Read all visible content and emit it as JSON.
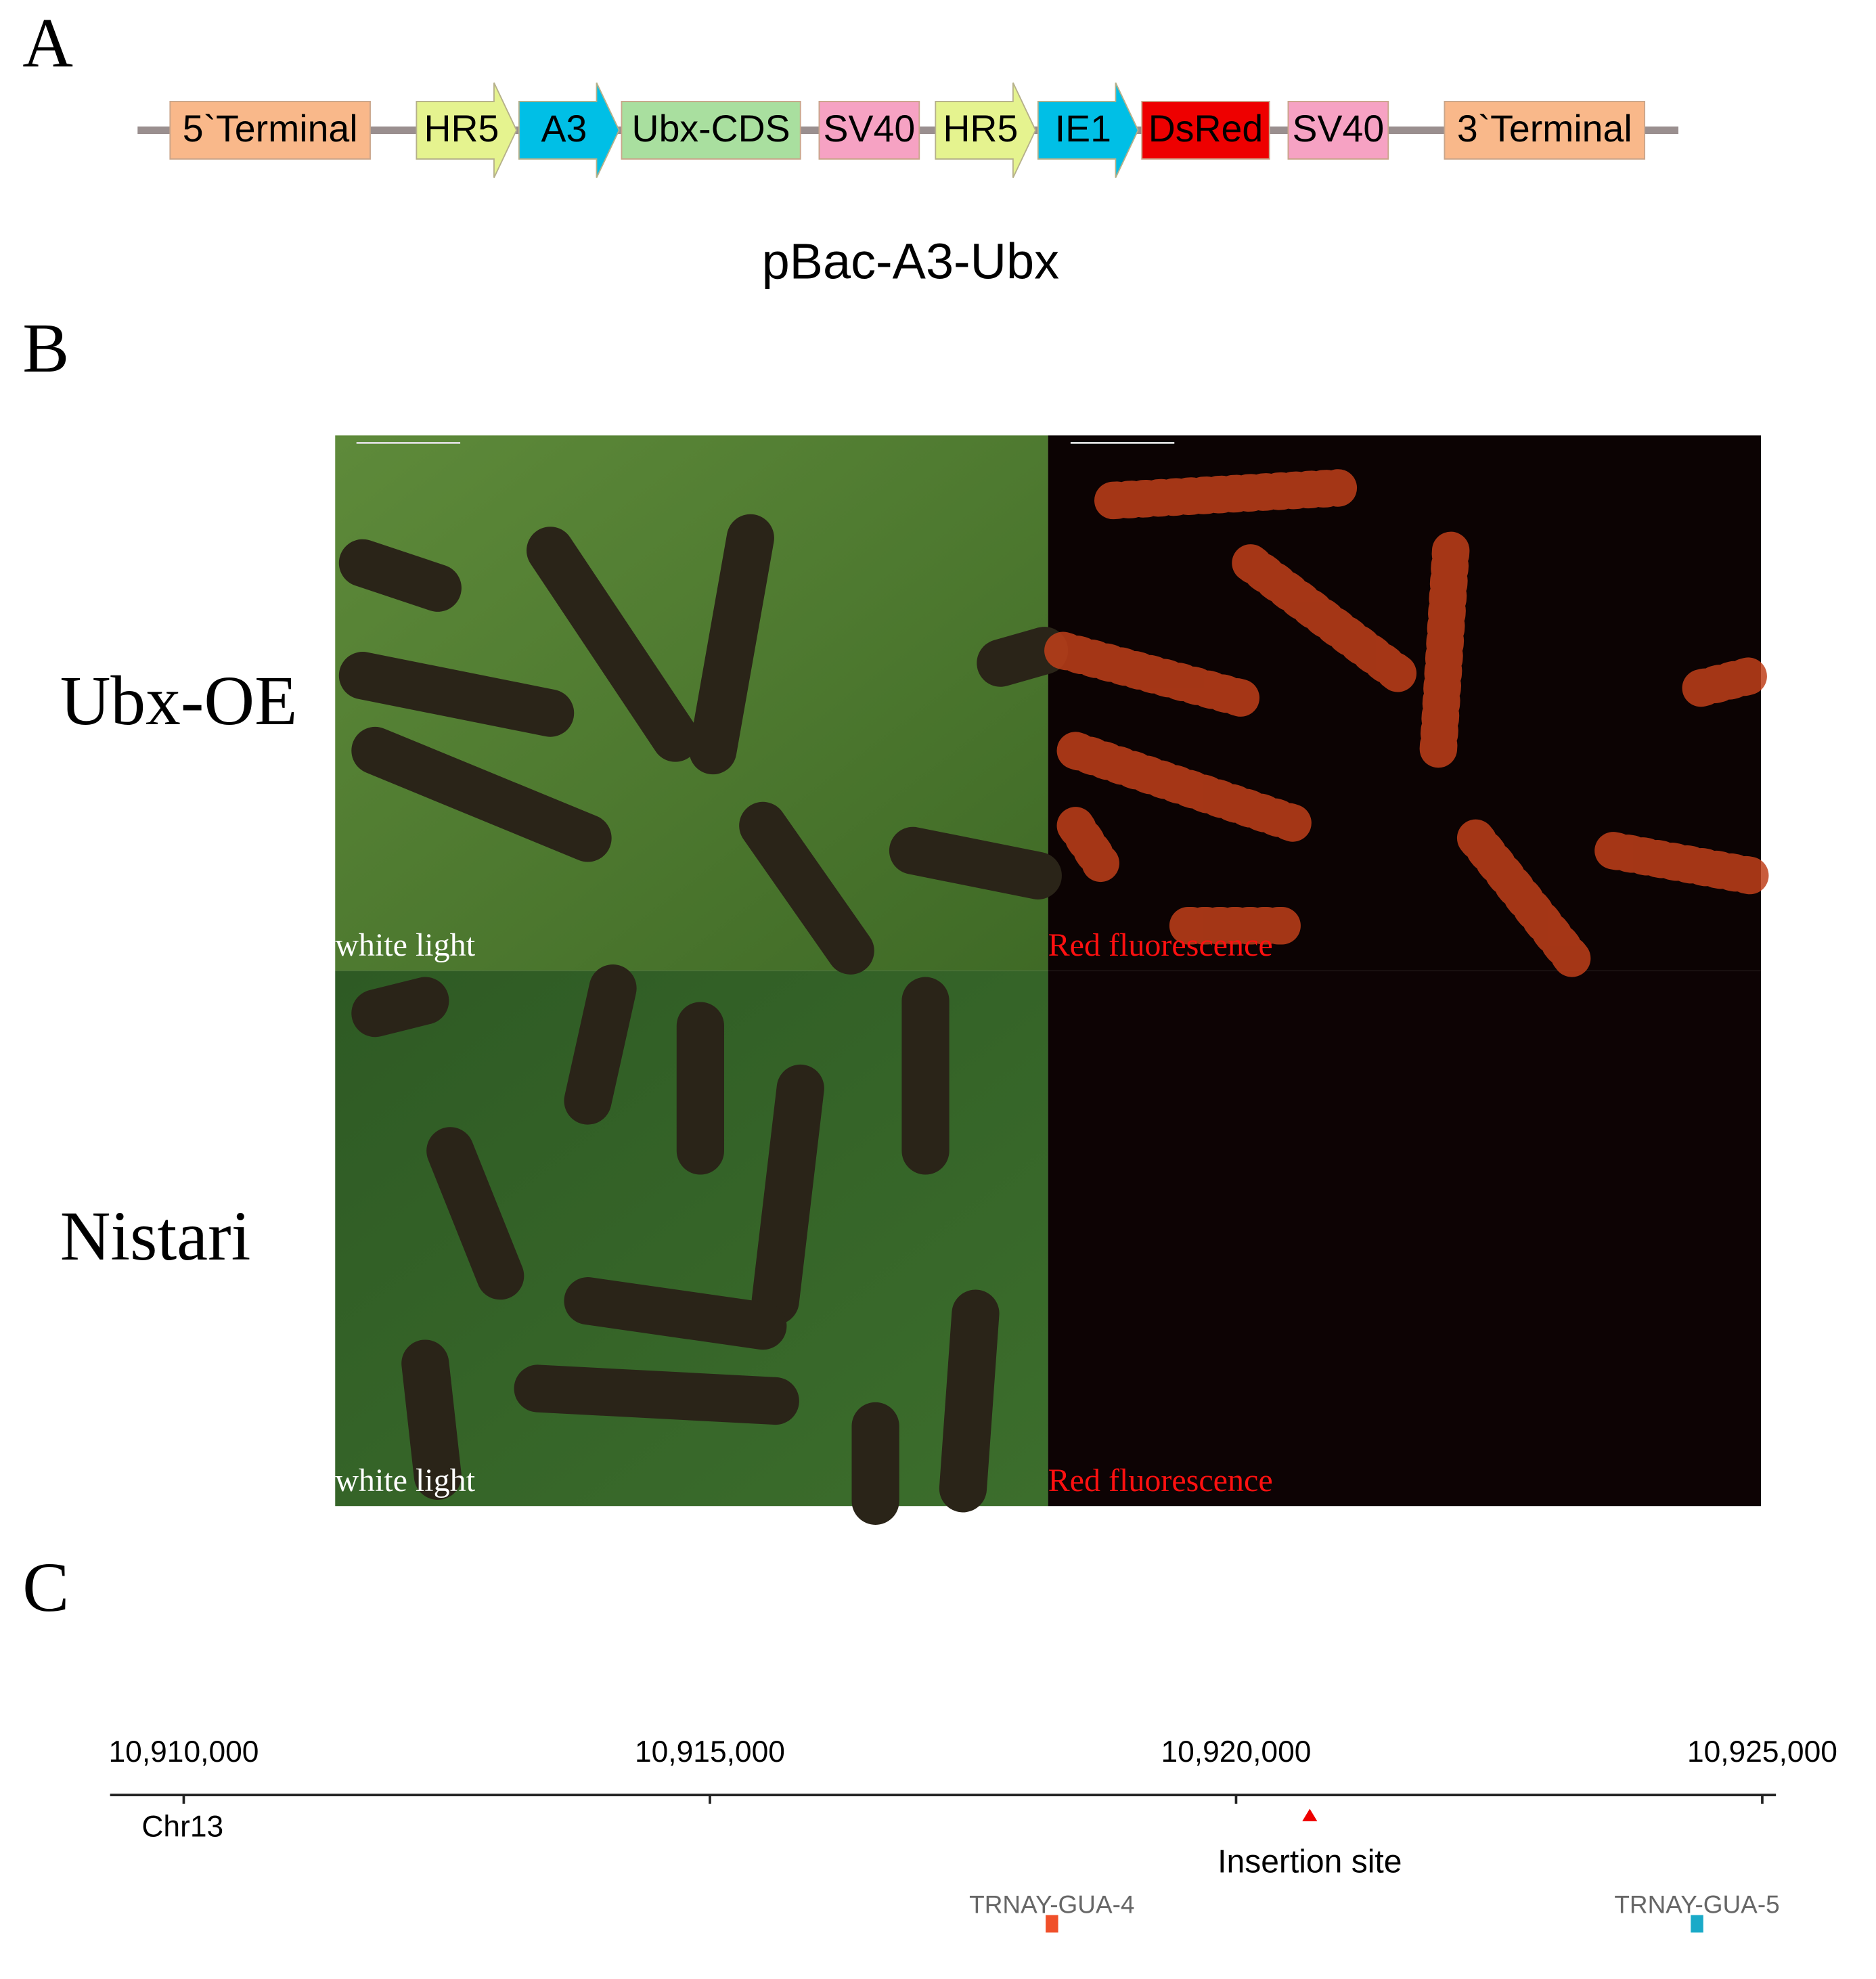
{
  "panel_a": {
    "label": "A",
    "caption": "pBac-A3-Ubx",
    "construct": [
      {
        "label": "5`Terminal",
        "shape": "box",
        "color": "#f9b88a"
      },
      {
        "label": "HR5",
        "shape": "arrow",
        "color": "#e5f38f"
      },
      {
        "label": "A3",
        "shape": "arrow",
        "color": "#00bfe6"
      },
      {
        "label": "Ubx-CDS",
        "shape": "box",
        "color": "#a9df9f"
      },
      {
        "label": "SV40",
        "shape": "box",
        "color": "#f6a2c3"
      },
      {
        "label": "HR5",
        "shape": "arrow",
        "color": "#e5f38f"
      },
      {
        "label": "IE1",
        "shape": "arrow",
        "color": "#00bfe6"
      },
      {
        "label": "DsRed",
        "shape": "box",
        "color": "#ee0000"
      },
      {
        "label": "SV40",
        "shape": "box",
        "color": "#f6a2c3"
      },
      {
        "label": "3`Terminal",
        "shape": "box",
        "color": "#f9b88a"
      }
    ]
  },
  "panel_b": {
    "label": "B",
    "rows": [
      {
        "name": "Ubx-OE",
        "images": [
          {
            "caption": "white light"
          },
          {
            "caption": "Red fluorescence"
          }
        ]
      },
      {
        "name": "Nistari",
        "images": [
          {
            "caption": "white light"
          },
          {
            "caption": "Red fluorescence"
          }
        ]
      }
    ]
  },
  "chart_data": {
    "type": "track",
    "panel_label": "C",
    "track_label": "Chr13",
    "xlim": [
      10909300,
      10925130
    ],
    "xticks": [
      {
        "value": 10910000,
        "label": "10,910,000"
      },
      {
        "value": 10915000,
        "label": "10,915,000"
      },
      {
        "value": 10920000,
        "label": "10,920,000"
      },
      {
        "value": 10925000,
        "label": "10,925,000"
      }
    ],
    "insertion": {
      "label": "Insertion site",
      "x": 10920700,
      "color": "#ee0000"
    },
    "genes": [
      {
        "name": "TRNAY-GUA-4",
        "x": 10918250,
        "color": "#f0502a"
      },
      {
        "name": "TRNAY-GUA-5",
        "x": 10924380,
        "color": "#1aaac8"
      }
    ]
  }
}
